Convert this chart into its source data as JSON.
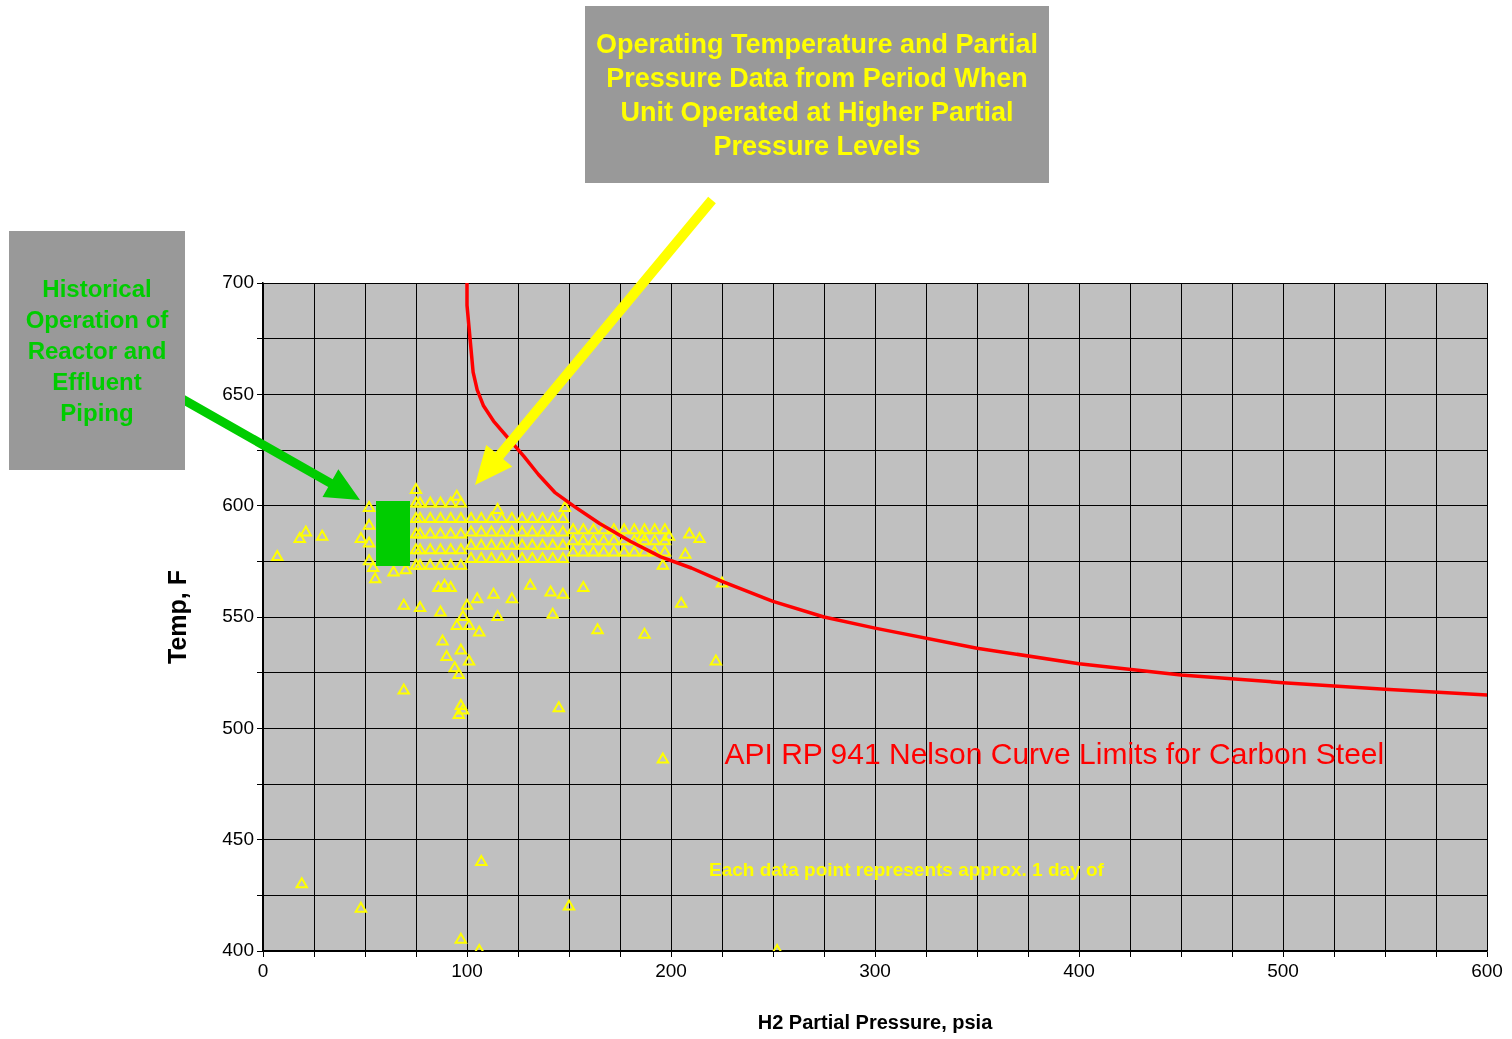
{
  "chart_data": {
    "type": "scatter",
    "xlabel": "H2 Partial Pressure, psia",
    "ylabel": "Temp, F",
    "annotations": [
      "Operating Temperature and Partial Pressure  Data from Period When Unit Operated at Higher Partial Pressure Levels",
      "Historical Operation of Reactor and Effluent Piping",
      "Each data point represents approx. 1 day of"
    ],
    "xlim": [
      0,
      600
    ],
    "ylim": [
      400,
      700
    ],
    "xticks": [
      0,
      {
        "value": 25,
        "label": null
      },
      {
        "value": 50,
        "label": null
      },
      {
        "value": 75,
        "label": null
      },
      100,
      {
        "value": 125,
        "label": null
      },
      {
        "value": 150,
        "label": null
      },
      {
        "value": 175,
        "label": null
      },
      200,
      {
        "value": 225,
        "label": null
      },
      {
        "value": 250,
        "label": null
      },
      {
        "value": 275,
        "label": null
      },
      300,
      {
        "value": 325,
        "label": null
      },
      {
        "value": 350,
        "label": null
      },
      {
        "value": 375,
        "label": null
      },
      400,
      {
        "value": 425,
        "label": null
      },
      {
        "value": 450,
        "label": null
      },
      {
        "value": 475,
        "label": null
      },
      500,
      {
        "value": 525,
        "label": null
      },
      {
        "value": 550,
        "label": null
      },
      {
        "value": 575,
        "label": null
      },
      600
    ],
    "yticks": [
      400,
      {
        "value": 425,
        "label": null
      },
      450,
      {
        "value": 475,
        "label": null
      },
      500,
      {
        "value": 525,
        "label": null
      },
      550,
      {
        "value": 575,
        "label": null
      },
      600,
      {
        "value": 625,
        "label": null
      },
      650,
      {
        "value": 675,
        "label": null
      },
      700
    ],
    "grid": true,
    "legend": false,
    "series": [
      {
        "type": "scatter",
        "marker": "triangle",
        "color": "#ffff00",
        "x": [
          7,
          18,
          21,
          29,
          19,
          48,
          97,
          106,
          107,
          150,
          252,
          145,
          196,
          222,
          225,
          187,
          164,
          205,
          157,
          142,
          69,
          69,
          77,
          97,
          98,
          96,
          88,
          90,
          94,
          96,
          97,
          101,
          95,
          98,
          101,
          106,
          55,
          54,
          64,
          70,
          87,
          89,
          86,
          92,
          100,
          105,
          113,
          115,
          122,
          131,
          141,
          147,
          209,
          214,
          207,
          199,
          196,
          48,
          75,
          95,
          115,
          148,
          186,
          52,
          52,
          52,
          52,
          75,
          75,
          75,
          75,
          75,
          77,
          77,
          77,
          77,
          77,
          82,
          82,
          82,
          82,
          82,
          87,
          87,
          87,
          87,
          87,
          92,
          92,
          92,
          92,
          92,
          97,
          97,
          97,
          97,
          97,
          102,
          102,
          102,
          102,
          107,
          107,
          107,
          107,
          112,
          112,
          112,
          112,
          117,
          117,
          117,
          117,
          122,
          122,
          122,
          122,
          127,
          127,
          127,
          127,
          132,
          132,
          132,
          132,
          137,
          137,
          137,
          137,
          142,
          142,
          142,
          142,
          147,
          147,
          147,
          147,
          152,
          152,
          152,
          157,
          157,
          157,
          162,
          162,
          162,
          167,
          167,
          167,
          172,
          172,
          172,
          177,
          177,
          177,
          182,
          182,
          182,
          187,
          187,
          187,
          192,
          192,
          192,
          197,
          197,
          197
        ],
        "values": [
          577,
          585,
          588,
          586,
          430,
          419,
          405,
          400,
          440,
          420,
          400,
          509,
          486,
          530,
          565,
          542,
          544,
          556,
          563,
          551,
          517,
          555,
          554,
          510,
          508,
          506,
          539,
          532,
          527,
          524,
          535,
          530,
          546,
          550,
          546,
          543,
          567,
          572,
          570,
          571,
          552,
          564,
          563,
          563,
          555,
          558,
          560,
          550,
          558,
          564,
          561,
          560,
          587,
          585,
          578,
          586,
          573,
          585,
          607,
          604,
          598,
          599,
          586,
          575,
          583,
          591,
          599,
          573,
          580,
          587,
          594,
          601,
          573,
          580,
          587,
          594,
          601,
          573,
          580,
          587,
          594,
          601,
          573,
          580,
          587,
          594,
          601,
          573,
          580,
          587,
          594,
          601,
          573,
          580,
          587,
          594,
          601,
          576,
          582,
          588,
          594,
          576,
          582,
          588,
          594,
          576,
          582,
          588,
          594,
          576,
          582,
          588,
          594,
          576,
          582,
          588,
          594,
          576,
          582,
          588,
          594,
          576,
          582,
          588,
          594,
          576,
          582,
          588,
          594,
          576,
          582,
          588,
          594,
          576,
          582,
          588,
          594,
          579,
          584,
          589,
          579,
          584,
          589,
          579,
          584,
          589,
          579,
          584,
          589,
          579,
          584,
          589,
          579,
          584,
          589,
          579,
          584,
          589,
          579,
          584,
          589,
          579,
          584,
          589,
          579,
          584,
          589
        ]
      },
      {
        "type": "line",
        "marker": "none",
        "name": "API RP 941 Nelson Curve Limits for Carbon Steel",
        "color": "#ff0000",
        "x": [
          100,
          100,
          101,
          102,
          103,
          105,
          108,
          113,
          128,
          135,
          143,
          152,
          165,
          180,
          195,
          210,
          225,
          250,
          275,
          300,
          350,
          400,
          450,
          500,
          550,
          600
        ],
        "values": [
          700,
          690,
          680,
          670,
          660,
          652,
          645,
          638,
          622,
          614,
          606,
          600,
          592,
          584,
          577,
          572,
          566,
          557,
          550,
          545,
          536,
          529,
          524,
          520.5,
          517.5,
          515
        ]
      }
    ]
  }
}
